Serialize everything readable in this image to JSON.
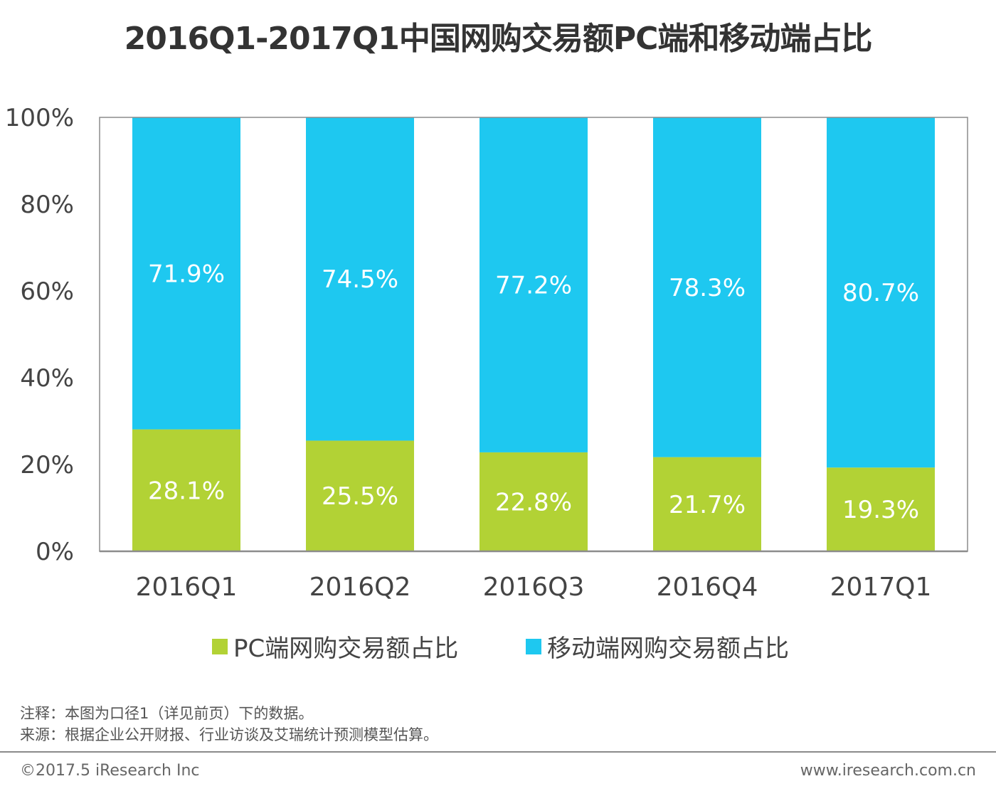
{
  "title": "2016Q1-2017Q1中国网购交易额PC端和移动端占比",
  "chart_data": {
    "type": "bar",
    "stacked": true,
    "percent": true,
    "categories": [
      "2016Q1",
      "2016Q2",
      "2016Q3",
      "2016Q4",
      "2017Q1"
    ],
    "series": [
      {
        "name": "PC端网购交易额占比",
        "values": [
          28.1,
          25.5,
          22.8,
          21.7,
          19.3
        ],
        "labels": [
          "28.1%",
          "25.5%",
          "22.8%",
          "21.7%",
          "19.3%"
        ],
        "color": "#b2d235"
      },
      {
        "name": "移动端网购交易额占比",
        "values": [
          71.9,
          74.5,
          77.2,
          78.3,
          80.7
        ],
        "labels": [
          "71.9%",
          "74.5%",
          "77.2%",
          "78.3%",
          "80.7%"
        ],
        "color": "#1ec8f0"
      }
    ],
    "ylim": [
      0,
      100
    ],
    "yticks": [
      "0%",
      "20%",
      "40%",
      "60%",
      "80%",
      "100%"
    ],
    "grid": false,
    "legend_position": "bottom"
  },
  "notes": {
    "line1": "注释：本图为口径1（详见前页）下的数据。",
    "line2": "来源：根据企业公开财报、行业访谈及艾瑞统计预测模型估算。"
  },
  "footer": {
    "copyright": "©2017.5 iResearch Inc",
    "website": "www.iresearch.com.cn"
  },
  "colors": {
    "pc": "#b2d235",
    "mobile": "#1ec8f0",
    "axis": "#8c8c8c",
    "tick_text": "#444444"
  }
}
